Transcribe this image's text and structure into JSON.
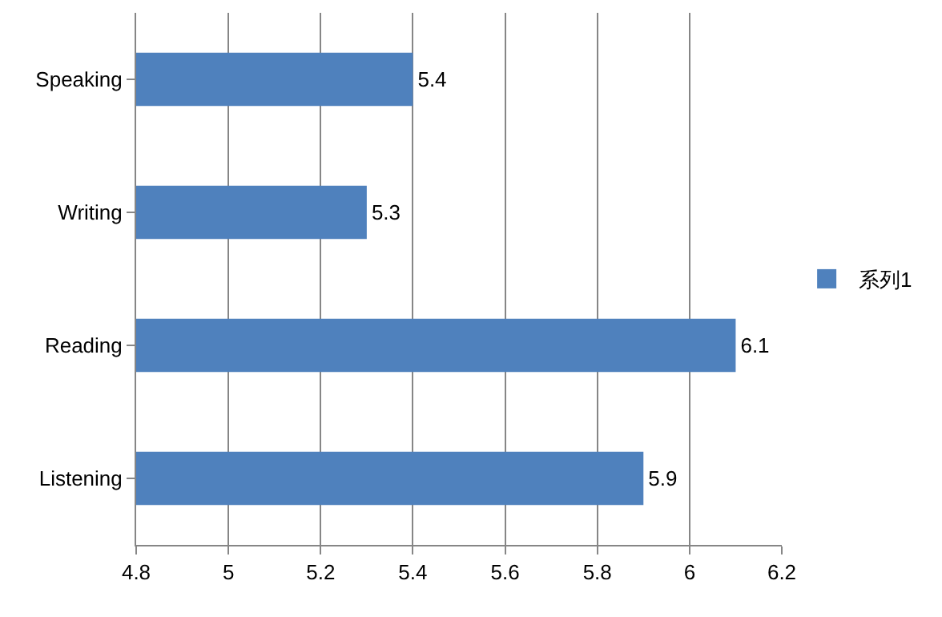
{
  "chart_data": {
    "type": "bar",
    "orientation": "horizontal",
    "categories": [
      "Speaking",
      "Writing",
      "Reading",
      "Listening"
    ],
    "series": [
      {
        "name": "系列1",
        "color": "#4f81bd",
        "values": [
          5.4,
          5.3,
          6.1,
          5.9
        ]
      }
    ],
    "xlim": [
      4.8,
      6.2
    ],
    "xticks": [
      4.8,
      5,
      5.2,
      5.4,
      5.6,
      5.8,
      6,
      6.2
    ],
    "grid": "x",
    "legend": "right",
    "data_labels": true
  }
}
